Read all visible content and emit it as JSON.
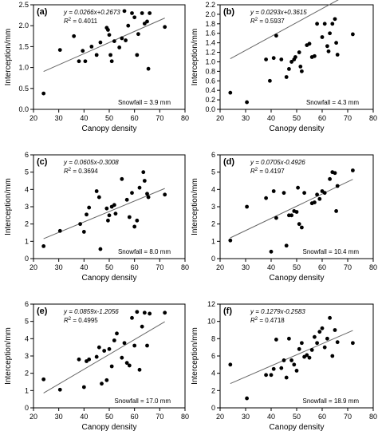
{
  "chart_data": [
    {
      "type": "scatter",
      "panel_label": "(a)",
      "equation": "y = 0.0266x+0.2673",
      "r2_prefix": "R",
      "r2_value": " = 0.4011",
      "snowfall": "Snowfall = 3.9 mm",
      "xlabel": "Canopy density",
      "ylabel": "Interception/mm",
      "xlim": [
        20,
        80
      ],
      "ylim": [
        0,
        2.5
      ],
      "xticks": [
        "20",
        "30",
        "40",
        "50",
        "60",
        "70",
        "80"
      ],
      "yticks": [
        "0.0",
        "0.5",
        "1.0",
        "1.5",
        "2.0",
        "2.5"
      ],
      "ytick_values": [
        0,
        0.5,
        1.0,
        1.5,
        2.0,
        2.5
      ],
      "points": [
        [
          24,
          0.38
        ],
        [
          30.5,
          1.42
        ],
        [
          36,
          1.75
        ],
        [
          38,
          1.15
        ],
        [
          39.5,
          1.4
        ],
        [
          40.5,
          1.15
        ],
        [
          43,
          1.5
        ],
        [
          45,
          1.3
        ],
        [
          46.5,
          1.6
        ],
        [
          49,
          1.95
        ],
        [
          49.5,
          1.9
        ],
        [
          50,
          1.78
        ],
        [
          50.5,
          1.3
        ],
        [
          51,
          1.15
        ],
        [
          52,
          1.63
        ],
        [
          54,
          1.48
        ],
        [
          55,
          1.7
        ],
        [
          56.5,
          1.65
        ],
        [
          57.5,
          2.0
        ],
        [
          56,
          2.35
        ],
        [
          59,
          2.3
        ],
        [
          60,
          2.2
        ],
        [
          61,
          1.3
        ],
        [
          61.5,
          1.8
        ],
        [
          63,
          2.3
        ],
        [
          64,
          2.05
        ],
        [
          65,
          2.1
        ],
        [
          65.5,
          0.97
        ],
        [
          66,
          2.3
        ],
        [
          72,
          1.97
        ]
      ],
      "trend": {
        "slope": 0.0266,
        "intercept": 0.2673,
        "x_range": [
          24,
          72
        ]
      }
    },
    {
      "type": "scatter",
      "panel_label": "(b)",
      "equation": "y = 0.0293x+0.3615",
      "r2_prefix": "R",
      "r2_value": " = 0.5937",
      "snowfall": "Snowfall = 4.3 mm",
      "xlabel": "Canopy density",
      "ylabel": "Interception/mm",
      "xlim": [
        20,
        80
      ],
      "ylim": [
        0,
        2.2
      ],
      "xticks": [
        "20",
        "30",
        "40",
        "50",
        "60",
        "70",
        "80"
      ],
      "yticks": [
        "0.0",
        "0.2",
        "0.4",
        "0.6",
        "0.8",
        "1.0",
        "1.2",
        "1.4",
        "1.6",
        "1.8",
        "2.0",
        "2.2"
      ],
      "ytick_values": [
        0,
        0.2,
        0.4,
        0.6,
        0.8,
        1.0,
        1.2,
        1.4,
        1.6,
        1.8,
        2.0,
        2.2
      ],
      "points": [
        [
          24,
          0.35
        ],
        [
          30.5,
          0.15
        ],
        [
          38,
          1.05
        ],
        [
          39.5,
          0.6
        ],
        [
          41,
          1.08
        ],
        [
          42,
          1.55
        ],
        [
          44,
          1.05
        ],
        [
          46,
          0.68
        ],
        [
          47,
          0.85
        ],
        [
          48,
          1.0
        ],
        [
          49,
          1.05
        ],
        [
          49.5,
          1.1
        ],
        [
          51,
          1.2
        ],
        [
          51.5,
          0.9
        ],
        [
          52,
          0.8
        ],
        [
          54,
          1.35
        ],
        [
          55,
          1.38
        ],
        [
          56,
          1.1
        ],
        [
          57,
          1.12
        ],
        [
          58,
          1.8
        ],
        [
          60,
          1.52
        ],
        [
          61,
          1.8
        ],
        [
          62,
          1.33
        ],
        [
          62.5,
          1.22
        ],
        [
          63,
          1.6
        ],
        [
          64,
          1.8
        ],
        [
          65,
          1.9
        ],
        [
          65.5,
          1.4
        ],
        [
          66,
          1.15
        ],
        [
          72,
          1.58
        ]
      ],
      "trend": {
        "slope": 0.0293,
        "intercept": 0.3615,
        "x_range": [
          24,
          72
        ]
      }
    },
    {
      "type": "scatter",
      "panel_label": "(c)",
      "equation": "y = 0.0605x-0.3008",
      "r2_prefix": "R",
      "r2_value": " = 0.3694",
      "snowfall": "Snowfall = 8.0 mm",
      "xlabel": "Canopy density",
      "ylabel": "Interception/mm",
      "xlim": [
        20,
        80
      ],
      "ylim": [
        0,
        6
      ],
      "xticks": [
        "20",
        "30",
        "40",
        "50",
        "60",
        "70",
        "80"
      ],
      "yticks": [
        "0",
        "1",
        "2",
        "3",
        "4",
        "5",
        "6"
      ],
      "ytick_values": [
        0,
        1,
        2,
        3,
        4,
        5,
        6
      ],
      "points": [
        [
          24,
          0.72
        ],
        [
          30.5,
          1.6
        ],
        [
          38.5,
          2.0
        ],
        [
          40,
          1.55
        ],
        [
          41,
          2.55
        ],
        [
          42,
          2.95
        ],
        [
          45,
          3.9
        ],
        [
          46,
          3.55
        ],
        [
          46.5,
          0.55
        ],
        [
          49,
          2.9
        ],
        [
          49.5,
          2.2
        ],
        [
          50,
          2.5
        ],
        [
          51,
          3.0
        ],
        [
          52,
          3.1
        ],
        [
          52.5,
          2.6
        ],
        [
          55,
          4.6
        ],
        [
          57,
          3.4
        ],
        [
          58,
          2.4
        ],
        [
          59,
          3.8
        ],
        [
          60,
          1.85
        ],
        [
          61,
          2.2
        ],
        [
          62,
          4.1
        ],
        [
          63.5,
          5.0
        ],
        [
          64,
          4.5
        ],
        [
          65,
          3.75
        ],
        [
          65.5,
          3.55
        ],
        [
          72,
          3.7
        ]
      ],
      "trend": {
        "slope": 0.0605,
        "intercept": -0.3008,
        "x_range": [
          24,
          72
        ]
      }
    },
    {
      "type": "scatter",
      "panel_label": "(d)",
      "equation": "y = 0.0705x-0.4926",
      "r2_prefix": "R",
      "r2_value": " = 0.4197",
      "snowfall": "Snowfall = 10.4 mm",
      "xlabel": "Canopy density",
      "ylabel": "Interception/mm",
      "xlim": [
        20,
        80
      ],
      "ylim": [
        0,
        6
      ],
      "xticks": [
        "20",
        "30",
        "40",
        "50",
        "60",
        "70",
        "80"
      ],
      "yticks": [
        "0",
        "1",
        "2",
        "3",
        "4",
        "5",
        "6"
      ],
      "ytick_values": [
        0,
        1,
        2,
        3,
        4,
        5,
        6
      ],
      "points": [
        [
          24,
          1.05
        ],
        [
          30.5,
          3.0
        ],
        [
          38,
          3.5
        ],
        [
          40,
          0.4
        ],
        [
          41,
          3.9
        ],
        [
          42,
          2.35
        ],
        [
          45,
          3.8
        ],
        [
          46,
          0.75
        ],
        [
          47,
          2.5
        ],
        [
          48,
          2.5
        ],
        [
          49,
          2.75
        ],
        [
          50,
          2.7
        ],
        [
          50.5,
          4.1
        ],
        [
          51,
          2.0
        ],
        [
          52,
          1.8
        ],
        [
          53,
          3.8
        ],
        [
          56,
          3.2
        ],
        [
          57,
          3.25
        ],
        [
          58,
          3.7
        ],
        [
          59,
          3.45
        ],
        [
          60,
          3.9
        ],
        [
          61,
          3.8
        ],
        [
          63,
          4.6
        ],
        [
          64,
          5.0
        ],
        [
          65,
          4.95
        ],
        [
          65.5,
          2.75
        ],
        [
          66,
          4.2
        ],
        [
          72,
          5.1
        ]
      ],
      "trend": {
        "slope": 0.0705,
        "intercept": -0.4926,
        "x_range": [
          24,
          72
        ]
      }
    },
    {
      "type": "scatter",
      "panel_label": "(e)",
      "equation": "y = 0.0859x-1.2056",
      "r2_prefix": "R",
      "r2_value": " = 0.4995",
      "snowfall": "Snowfall = 17.0 mm",
      "xlabel": "Canopy density",
      "ylabel": "Interception/mm",
      "xlim": [
        20,
        80
      ],
      "ylim": [
        0,
        6
      ],
      "xticks": [
        "20",
        "30",
        "40",
        "50",
        "60",
        "70",
        "80"
      ],
      "yticks": [
        "0",
        "1",
        "2",
        "3",
        "4",
        "5",
        "6"
      ],
      "ytick_values": [
        0,
        1,
        2,
        3,
        4,
        5,
        6
      ],
      "points": [
        [
          24,
          1.65
        ],
        [
          30.5,
          1.05
        ],
        [
          38,
          2.8
        ],
        [
          40,
          1.2
        ],
        [
          41,
          2.7
        ],
        [
          42,
          2.8
        ],
        [
          45,
          2.95
        ],
        [
          46,
          3.5
        ],
        [
          47,
          1.4
        ],
        [
          48,
          3.3
        ],
        [
          49,
          1.6
        ],
        [
          50,
          3.4
        ],
        [
          51,
          2.4
        ],
        [
          52,
          3.9
        ],
        [
          53,
          4.3
        ],
        [
          55,
          2.9
        ],
        [
          56,
          3.75
        ],
        [
          57,
          2.6
        ],
        [
          58,
          2.45
        ],
        [
          59,
          5.2
        ],
        [
          60,
          3.6
        ],
        [
          61,
          5.55
        ],
        [
          62,
          2.2
        ],
        [
          63,
          4.7
        ],
        [
          64,
          5.5
        ],
        [
          65,
          3.6
        ],
        [
          66,
          5.45
        ],
        [
          72,
          5.5
        ]
      ],
      "trend": {
        "slope": 0.0859,
        "intercept": -1.2056,
        "x_range": [
          24,
          72
        ]
      }
    },
    {
      "type": "scatter",
      "panel_label": "(f)",
      "equation": "y = 0.1279x-0.2583",
      "r2_prefix": "R",
      "r2_value": " = 0.4718",
      "snowfall": "Snowfall = 18.9 mm",
      "xlabel": "Canopy density",
      "ylabel": "Interception/mm",
      "xlim": [
        20,
        80
      ],
      "ylim": [
        0,
        12
      ],
      "xticks": [
        "20",
        "30",
        "40",
        "50",
        "60",
        "70",
        "80"
      ],
      "yticks": [
        "0",
        "2",
        "4",
        "6",
        "8",
        "10",
        "12"
      ],
      "ytick_values": [
        0,
        2,
        4,
        6,
        8,
        10,
        12
      ],
      "points": [
        [
          24,
          5.0
        ],
        [
          30.5,
          1.1
        ],
        [
          38,
          3.8
        ],
        [
          40,
          3.8
        ],
        [
          41,
          4.5
        ],
        [
          42,
          7.9
        ],
        [
          44,
          4.6
        ],
        [
          45,
          5.5
        ],
        [
          46,
          3.5
        ],
        [
          47,
          8.0
        ],
        [
          48,
          5.5
        ],
        [
          49,
          5.0
        ],
        [
          50,
          4.3
        ],
        [
          51,
          6.8
        ],
        [
          52,
          7.5
        ],
        [
          53,
          5.9
        ],
        [
          54,
          6.1
        ],
        [
          55,
          5.8
        ],
        [
          56,
          6.7
        ],
        [
          57,
          8.2
        ],
        [
          58,
          7.5
        ],
        [
          59,
          8.8
        ],
        [
          60,
          9.2
        ],
        [
          61,
          7.0
        ],
        [
          62,
          8.0
        ],
        [
          63,
          10.4
        ],
        [
          64,
          6.0
        ],
        [
          65,
          9.0
        ],
        [
          66,
          7.6
        ],
        [
          72,
          7.5
        ]
      ],
      "trend": {
        "slope": 0.1279,
        "intercept": -0.2583,
        "x_range": [
          24,
          72
        ]
      }
    }
  ]
}
